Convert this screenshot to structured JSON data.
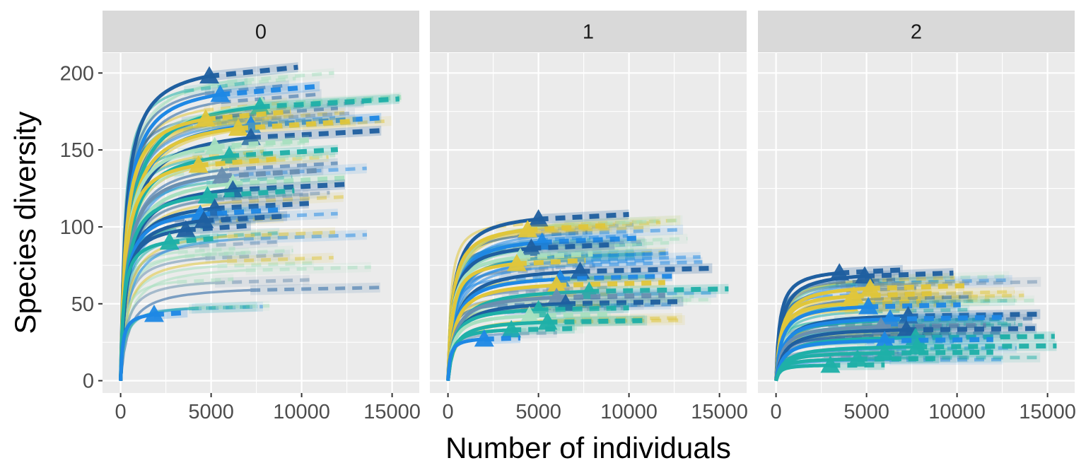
{
  "chart_data": {
    "type": "line",
    "xlabel": "Number of individuals",
    "ylabel": "Species diversity",
    "xlim": [
      -1000,
      16500
    ],
    "ylim": [
      -8,
      213
    ],
    "x_ticks": [
      0,
      5000,
      10000,
      15000
    ],
    "x_tick_labels": [
      "0",
      "5000",
      "10000",
      "15000"
    ],
    "y_ticks": [
      0,
      50,
      100,
      150,
      200
    ],
    "y_tick_labels": [
      "0",
      "50",
      "100",
      "150",
      "200"
    ],
    "grid": true,
    "legend": "none",
    "line_styles": [
      "solid (rarefaction)",
      "dashed (extrapolation)"
    ],
    "marker": "triangle (observed sample)",
    "colors": [
      "#1f5fa0",
      "#1e88e5",
      "#e0c63a",
      "#1fb0a8",
      "#a8e0c0",
      "#6a8fb0"
    ],
    "facets": [
      {
        "label": "0",
        "series": [
          {
            "color": "#1f5fa0",
            "n": 4900,
            "y": 198
          },
          {
            "color": "#1e88e5",
            "n": 5500,
            "y": 186
          },
          {
            "color": "#a8e0c0",
            "n": 7800,
            "y": 179
          },
          {
            "color": "#1fb0a8",
            "n": 7700,
            "y": 178
          },
          {
            "color": "#e0c63a",
            "n": 4700,
            "y": 170
          },
          {
            "color": "#1e88e5",
            "n": 7200,
            "y": 166
          },
          {
            "color": "#e0c63a",
            "n": 6500,
            "y": 164
          },
          {
            "color": "#1f5fa0",
            "n": 7200,
            "y": 158
          },
          {
            "color": "#a8e0c0",
            "n": 5200,
            "y": 152
          },
          {
            "color": "#1fb0a8",
            "n": 6000,
            "y": 146
          },
          {
            "color": "#e0c63a",
            "n": 4300,
            "y": 140
          },
          {
            "color": "#6a8fb0",
            "n": 5600,
            "y": 133
          },
          {
            "color": "#a8e0c0",
            "n": 6200,
            "y": 128
          },
          {
            "color": "#1f5fa0",
            "n": 6200,
            "y": 124
          },
          {
            "color": "#1fb0a8",
            "n": 4800,
            "y": 120
          },
          {
            "color": "#1f5fa0",
            "n": 5200,
            "y": 112
          },
          {
            "color": "#1e88e5",
            "n": 4400,
            "y": 108
          },
          {
            "color": "#1f5fa0",
            "n": 4600,
            "y": 104
          },
          {
            "color": "#1f5fa0",
            "n": 3600,
            "y": 98
          },
          {
            "color": "#1fb0a8",
            "n": 2700,
            "y": 90
          },
          {
            "color": "#1e88e5",
            "n": 1850,
            "y": 43
          }
        ]
      },
      {
        "label": "1",
        "series": [
          {
            "color": "#1f5fa0",
            "n": 5000,
            "y": 105
          },
          {
            "color": "#e0c63a",
            "n": 4400,
            "y": 98
          },
          {
            "color": "#1e88e5",
            "n": 5200,
            "y": 90
          },
          {
            "color": "#1f5fa0",
            "n": 4600,
            "y": 86
          },
          {
            "color": "#a8e0c0",
            "n": 4000,
            "y": 80
          },
          {
            "color": "#e0c63a",
            "n": 3800,
            "y": 76
          },
          {
            "color": "#1f5fa0",
            "n": 7300,
            "y": 71
          },
          {
            "color": "#1e88e5",
            "n": 6200,
            "y": 66
          },
          {
            "color": "#e0c63a",
            "n": 6000,
            "y": 62
          },
          {
            "color": "#1fb0a8",
            "n": 7800,
            "y": 58
          },
          {
            "color": "#6a8fb0",
            "n": 6000,
            "y": 54
          },
          {
            "color": "#1f5fa0",
            "n": 6500,
            "y": 50
          },
          {
            "color": "#1fb0a8",
            "n": 5000,
            "y": 46
          },
          {
            "color": "#a8e0c0",
            "n": 4500,
            "y": 42
          },
          {
            "color": "#1fb0a8",
            "n": 5500,
            "y": 38
          },
          {
            "color": "#1fb0a8",
            "n": 3500,
            "y": 33
          },
          {
            "color": "#1e88e5",
            "n": 2000,
            "y": 27
          }
        ]
      },
      {
        "label": "2",
        "series": [
          {
            "color": "#1f5fa0",
            "n": 3500,
            "y": 70
          },
          {
            "color": "#1f5fa0",
            "n": 4900,
            "y": 68
          },
          {
            "color": "#e0c63a",
            "n": 5200,
            "y": 60
          },
          {
            "color": "#e0c63a",
            "n": 4300,
            "y": 55
          },
          {
            "color": "#e0c63a",
            "n": 4000,
            "y": 50
          },
          {
            "color": "#1e88e5",
            "n": 5100,
            "y": 48
          },
          {
            "color": "#1f5fa0",
            "n": 7300,
            "y": 42
          },
          {
            "color": "#1e88e5",
            "n": 6300,
            "y": 40
          },
          {
            "color": "#6a8fb0",
            "n": 5800,
            "y": 35
          },
          {
            "color": "#1f5fa0",
            "n": 7200,
            "y": 33
          },
          {
            "color": "#1fb0a8",
            "n": 7700,
            "y": 28
          },
          {
            "color": "#1e88e5",
            "n": 6000,
            "y": 26
          },
          {
            "color": "#1fb0a8",
            "n": 7800,
            "y": 22
          },
          {
            "color": "#1fb0a8",
            "n": 6000,
            "y": 18
          },
          {
            "color": "#1fb0a8",
            "n": 4500,
            "y": 14
          },
          {
            "color": "#1fb0a8",
            "n": 3000,
            "y": 10
          }
        ]
      }
    ]
  }
}
